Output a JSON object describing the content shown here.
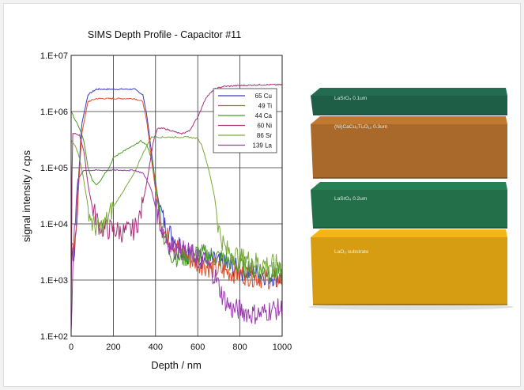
{
  "chart_data": {
    "type": "line",
    "title": "SIMS Depth Profile - Capacitor #11",
    "xlabel": "Depth / nm",
    "ylabel": "signal intensity / cps",
    "xlim": [
      0,
      1000
    ],
    "ylim": [
      100,
      10000000
    ],
    "yscale": "log",
    "grid": true,
    "legend": "top-right",
    "x_ticks": [
      "0",
      "200",
      "400",
      "600",
      "800",
      "1000"
    ],
    "y_ticks": [
      "1.E+02",
      "1.E+03",
      "1.E+04",
      "1.E+05",
      "1.E+06",
      "1.E+07"
    ],
    "series": [
      {
        "name": "65 Cu",
        "color": "#3b3bbf",
        "points": [
          [
            0,
            4000
          ],
          [
            15,
            2500
          ],
          [
            30,
            30000
          ],
          [
            50,
            600000
          ],
          [
            80,
            2000000
          ],
          [
            120,
            2500000
          ],
          [
            200,
            2500000
          ],
          [
            300,
            2500000
          ],
          [
            340,
            2000000
          ],
          [
            360,
            800000
          ],
          [
            380,
            200000
          ],
          [
            400,
            50000
          ],
          [
            420,
            20000
          ],
          [
            450,
            8000
          ],
          [
            500,
            5000
          ],
          [
            550,
            3000
          ],
          [
            600,
            2500
          ],
          [
            700,
            2000
          ],
          [
            800,
            1500
          ],
          [
            900,
            1300
          ],
          [
            1000,
            1100
          ]
        ]
      },
      {
        "name": "49 Ti",
        "color": "#e0502a",
        "points": [
          [
            0,
            3500
          ],
          [
            15,
            2500
          ],
          [
            30,
            20000
          ],
          [
            50,
            400000
          ],
          [
            80,
            1500000
          ],
          [
            120,
            1700000
          ],
          [
            200,
            1700000
          ],
          [
            300,
            1700000
          ],
          [
            340,
            1500000
          ],
          [
            360,
            600000
          ],
          [
            380,
            150000
          ],
          [
            400,
            40000
          ],
          [
            420,
            15000
          ],
          [
            450,
            6000
          ],
          [
            500,
            4000
          ],
          [
            550,
            2500
          ],
          [
            600,
            2000
          ],
          [
            700,
            1500
          ],
          [
            800,
            1300
          ],
          [
            900,
            1100
          ],
          [
            1000,
            1000
          ]
        ]
      },
      {
        "name": "44 Ca",
        "color": "#4a9a2a",
        "points": [
          [
            0,
            1000000
          ],
          [
            20,
            700000
          ],
          [
            40,
            500000
          ],
          [
            60,
            300000
          ],
          [
            80,
            100000
          ],
          [
            100,
            60000
          ],
          [
            120,
            50000
          ],
          [
            140,
            60000
          ],
          [
            160,
            80000
          ],
          [
            180,
            100000
          ],
          [
            200,
            150000
          ],
          [
            250,
            200000
          ],
          [
            300,
            250000
          ],
          [
            330,
            300000
          ],
          [
            360,
            250000
          ],
          [
            380,
            150000
          ],
          [
            400,
            60000
          ],
          [
            420,
            15000
          ],
          [
            440,
            6000
          ],
          [
            470,
            3000
          ],
          [
            520,
            2500
          ],
          [
            600,
            3000
          ],
          [
            700,
            2500
          ],
          [
            800,
            1800
          ],
          [
            900,
            1500
          ],
          [
            1000,
            1300
          ]
        ]
      },
      {
        "name": "60 Ni",
        "color": "#a8307a",
        "points": [
          [
            0,
            100
          ],
          [
            5,
            400000
          ],
          [
            20,
            400000
          ],
          [
            40,
            380000
          ],
          [
            60,
            200000
          ],
          [
            80,
            50000
          ],
          [
            100,
            20000
          ],
          [
            130,
            10000
          ],
          [
            160,
            8000
          ],
          [
            200,
            8000
          ],
          [
            250,
            7000
          ],
          [
            300,
            8000
          ],
          [
            330,
            15000
          ],
          [
            360,
            60000
          ],
          [
            390,
            300000
          ],
          [
            410,
            500000
          ],
          [
            440,
            500000
          ],
          [
            480,
            450000
          ],
          [
            520,
            400000
          ],
          [
            560,
            450000
          ],
          [
            600,
            800000
          ],
          [
            640,
            1800000
          ],
          [
            680,
            2500000
          ],
          [
            720,
            2800000
          ],
          [
            800,
            2900000
          ],
          [
            900,
            3000000
          ],
          [
            1000,
            3000000
          ]
        ]
      },
      {
        "name": "86 Sr",
        "color": "#7aaa3a",
        "points": [
          [
            0,
            300000
          ],
          [
            20,
            250000
          ],
          [
            40,
            150000
          ],
          [
            60,
            60000
          ],
          [
            80,
            20000
          ],
          [
            100,
            10000
          ],
          [
            130,
            8000
          ],
          [
            160,
            10000
          ],
          [
            200,
            20000
          ],
          [
            250,
            40000
          ],
          [
            300,
            80000
          ],
          [
            330,
            150000
          ],
          [
            360,
            250000
          ],
          [
            380,
            350000
          ],
          [
            400,
            350000
          ],
          [
            440,
            350000
          ],
          [
            500,
            350000
          ],
          [
            560,
            350000
          ],
          [
            600,
            330000
          ],
          [
            620,
            250000
          ],
          [
            650,
            100000
          ],
          [
            680,
            30000
          ],
          [
            700,
            8000
          ],
          [
            730,
            3500
          ],
          [
            800,
            2500
          ],
          [
            900,
            2000
          ],
          [
            1000,
            1800
          ]
        ]
      },
      {
        "name": "139 La",
        "color": "#9a3ab0",
        "points": [
          [
            0,
            100
          ],
          [
            10,
            3000
          ],
          [
            30,
            60000
          ],
          [
            60,
            90000
          ],
          [
            100,
            90000
          ],
          [
            200,
            90000
          ],
          [
            300,
            90000
          ],
          [
            340,
            80000
          ],
          [
            360,
            60000
          ],
          [
            380,
            40000
          ],
          [
            400,
            20000
          ],
          [
            430,
            8000
          ],
          [
            470,
            4000
          ],
          [
            520,
            3500
          ],
          [
            560,
            3000
          ],
          [
            600,
            2500
          ],
          [
            640,
            2000
          ],
          [
            680,
            1200
          ],
          [
            720,
            500
          ],
          [
            760,
            300
          ],
          [
            800,
            300
          ],
          [
            850,
            250
          ],
          [
            900,
            250
          ],
          [
            950,
            300
          ],
          [
            1000,
            300
          ]
        ]
      }
    ]
  },
  "stack": {
    "layers": [
      {
        "name": "top-lasro",
        "label": "LaSrO₄ 0.1um",
        "color": "#1e5e46"
      },
      {
        "name": "ccto",
        "label": "(Ni)CaCu₃Ti₄O₁₂ 0.3um",
        "color": "#a8692a"
      },
      {
        "name": "mid-lasro",
        "label": "LaSrO₄ 0.2um",
        "color": "#236f4a"
      },
      {
        "name": "substrate",
        "label": "LaO₃ substrate",
        "color": "#d79d12"
      }
    ]
  }
}
